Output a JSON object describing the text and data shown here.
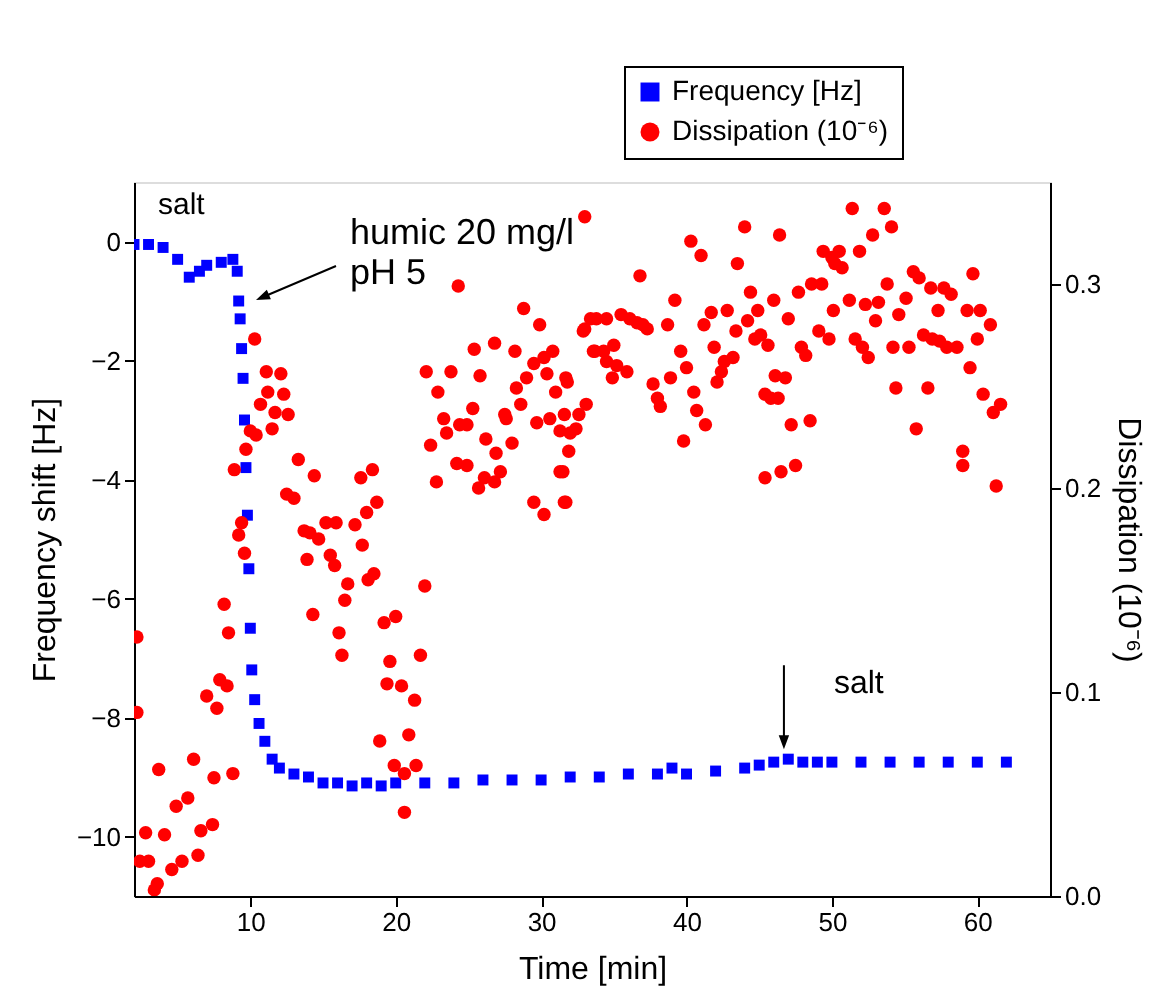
{
  "chart_data": {
    "type": "scatter",
    "xlabel": "Time [min]",
    "ylabel": "Frequency shift [Hz]",
    "y2label": "Dissipation (10⁻⁶)",
    "xlim": [
      2,
      65
    ],
    "xticks": [
      10,
      20,
      30,
      40,
      50,
      60
    ],
    "ylim": [
      -11,
      1
    ],
    "yticks": [
      0,
      -2,
      -4,
      -6,
      -8,
      -10
    ],
    "y2lim": [
      0,
      0.35
    ],
    "y2ticks": [
      {
        "value": 0,
        "label": "0.0"
      },
      0.1,
      0.2,
      0.3
    ],
    "legend": "top right",
    "grid": false,
    "annotations": [
      "salt",
      "humic 20 mg/l\npH 5",
      {
        "text": "salt",
        "x": 46.7,
        "y": -8.6
      }
    ],
    "series": [
      {
        "name": "Frequency [Hz]",
        "color": "#0000ff",
        "marker": "square",
        "axis": "y",
        "x": [
          2.0,
          3,
          4,
          5,
          5.8,
          6.5,
          7,
          8,
          8.8,
          9.1,
          9.2,
          9.3,
          9.4,
          9.5,
          9.6,
          9.7,
          9.8,
          9.9,
          10.0,
          10.1,
          10.3,
          10.6,
          11,
          11.5,
          12,
          13,
          14,
          15,
          16,
          17,
          18,
          19,
          20,
          22,
          24,
          26,
          28,
          30,
          32,
          34,
          36,
          38,
          39,
          40,
          42,
          44,
          45,
          46,
          47,
          48,
          49,
          50,
          52,
          54,
          56,
          58,
          60,
          62
        ],
        "values": [
          -0.05,
          -0.05,
          -0.1,
          -0.3,
          -0.6,
          -0.5,
          -0.4,
          -0.35,
          -0.3,
          -0.5,
          -1.0,
          -1.3,
          -1.8,
          -2.3,
          -3.0,
          -3.8,
          -4.6,
          -5.5,
          -6.5,
          -7.2,
          -7.7,
          -8.1,
          -8.4,
          -8.7,
          -8.85,
          -8.95,
          -9.0,
          -9.1,
          -9.1,
          -9.15,
          -9.1,
          -9.15,
          -9.1,
          -9.1,
          -9.1,
          -9.05,
          -9.05,
          -9.05,
          -9.0,
          -9.0,
          -8.95,
          -8.95,
          -8.85,
          -8.95,
          -8.9,
          -8.85,
          -8.8,
          -8.75,
          -8.7,
          -8.75,
          -8.75,
          -8.75,
          -8.75,
          -8.75,
          -8.75,
          -8.75,
          -8.75,
          -8.75
        ]
      },
      {
        "name": "Dissipation (10⁻⁶)",
        "color": "#ff0000",
        "marker": "circle",
        "axis": "y2",
        "x": [
          2.2,
          2.2,
          3.7,
          6.1,
          7.5,
          8.8,
          7.0,
          7.7,
          7.9,
          8.4,
          8.2,
          8.5,
          2.8,
          2.4,
          3.0,
          4.1,
          4.9,
          5.7,
          6.6,
          7.4,
          6.4,
          5.3,
          4.6,
          3.6,
          3.4,
          16.3,
          19.6,
          19.4,
          20.4,
          21.3,
          21.7,
          18.9,
          20.9,
          19.9,
          20.6,
          21.4,
          20.6,
          24.3,
          10.3,
          11.1,
          12.1,
          11.2,
          12.3,
          10.7,
          11.7,
          12.6,
          11.5,
          10.0,
          10.4,
          9.7,
          13.3,
          14.4,
          12.5,
          13.0,
          8.9,
          9.4,
          9.2,
          9.6,
          13.7,
          14.1,
          15.2,
          15.9,
          14.7,
          13.9,
          15.5,
          15.8,
          17.2,
          17.7,
          17.6,
          18.4,
          18.7,
          18.0,
          16.7,
          16.5,
          18.1,
          18.5,
          14.3,
          16.1,
          19.2,
          20.0,
          22.0,
          22.1,
          23.8,
          22.9,
          22.4,
          22.8,
          23.5,
          23.3,
          24.4,
          24.9,
          24.2,
          24.9,
          25.3,
          25.4,
          26.8,
          25.8,
          26.2,
          25.7,
          26.1,
          26.8,
          26.9,
          27.2,
          27.5,
          27.6,
          28.0,
          28.3,
          28.2,
          28.8,
          29.5,
          28.6,
          29.0,
          29.9,
          30.2,
          30.4,
          29.7,
          30.8,
          31.0,
          30.6,
          31.6,
          29.5,
          30.2,
          31.3,
          31.7,
          32.0,
          31.7,
          33.0,
          33.4,
          33.7,
          33.0,
          32.9,
          33.8,
          34.5,
          35.5,
          36.1,
          36.6,
          37.0,
          37.3,
          33.6,
          34.3,
          35.0,
          34.5,
          35.2,
          35.9,
          34.9,
          31.8,
          31.3,
          32.4,
          31.9,
          31.5,
          31.6,
          33.1,
          32.6,
          36.8,
          37.7,
          38.0,
          38.2,
          38.9,
          38.7,
          39.2,
          39.6,
          40.0,
          39.8,
          40.3,
          41.0,
          40.5,
          40.7,
          41.3,
          41.2,
          41.7,
          41.9,
          42.4,
          42.1,
          42.6,
          42.8,
          43.2,
          43.5,
          44.0,
          43.4,
          44.2,
          44.4,
          44.7,
          44.9,
          45.1,
          45.4,
          45.8,
          45.6,
          46.0,
          46.3,
          46.4,
          46.1,
          46.8,
          47.0,
          47.2,
          47.5,
          46.5,
          45.4,
          47.7,
          47.9,
          48.2,
          48.5,
          48.6,
          49.1,
          49.3,
          49.8,
          49.4,
          50.0,
          50.2,
          50.5,
          50.7,
          50.1,
          51.2,
          51.4,
          51.6,
          51.9,
          52.1,
          52.5,
          52.3,
          52.8,
          53.2,
          53.6,
          54.1,
          53.8,
          53.0,
          54.2,
          54.4,
          54.6,
          55.1,
          55.3,
          55.6,
          55.8,
          56.0,
          56.3,
          56.6,
          56.8,
          56.9,
          57.3,
          57.4,
          57.7,
          57.9,
          58.2,
          58.6,
          59.0,
          59.0,
          59.3,
          59.5,
          59.7,
          60.0,
          60.2,
          60.4,
          60.9,
          61.1,
          61.3,
          61.6
        ],
        "values": [
          0.127,
          0.09,
          0.062,
          0.067,
          0.058,
          0.06,
          0.098,
          0.092,
          0.106,
          0.103,
          0.143,
          0.129,
          0.031,
          0.017,
          0.017,
          0.03,
          0.044,
          0.048,
          0.032,
          0.035,
          0.02,
          0.017,
          0.013,
          0.006,
          0.003,
          0.118,
          0.115,
          0.104,
          0.103,
          0.096,
          0.118,
          0.076,
          0.079,
          0.064,
          0.06,
          0.064,
          0.041,
          0.299,
          0.273,
          0.257,
          0.256,
          0.247,
          0.246,
          0.241,
          0.237,
          0.236,
          0.229,
          0.228,
          0.226,
          0.219,
          0.214,
          0.206,
          0.197,
          0.195,
          0.209,
          0.183,
          0.177,
          0.168,
          0.179,
          0.178,
          0.183,
          0.183,
          0.175,
          0.165,
          0.167,
          0.162,
          0.182,
          0.172,
          0.205,
          0.209,
          0.193,
          0.188,
          0.153,
          0.145,
          0.155,
          0.158,
          0.138,
          0.129,
          0.134,
          0.137,
          0.152,
          0.257,
          0.257,
          0.247,
          0.221,
          0.203,
          0.227,
          0.234,
          0.231,
          0.231,
          0.212,
          0.211,
          0.239,
          0.268,
          0.271,
          0.255,
          0.224,
          0.2,
          0.205,
          0.203,
          0.217,
          0.208,
          0.236,
          0.234,
          0.222,
          0.249,
          0.267,
          0.288,
          0.261,
          0.241,
          0.254,
          0.28,
          0.264,
          0.256,
          0.232,
          0.267,
          0.247,
          0.234,
          0.236,
          0.193,
          0.187,
          0.208,
          0.254,
          0.227,
          0.193,
          0.278,
          0.283,
          0.267,
          0.333,
          0.277,
          0.283,
          0.283,
          0.285,
          0.283,
          0.281,
          0.28,
          0.278,
          0.267,
          0.267,
          0.27,
          0.262,
          0.26,
          0.257,
          0.254,
          0.252,
          0.228,
          0.229,
          0.218,
          0.208,
          0.193,
          0.241,
          0.236,
          0.304,
          0.251,
          0.244,
          0.24,
          0.254,
          0.28,
          0.292,
          0.267,
          0.259,
          0.223,
          0.321,
          0.314,
          0.247,
          0.238,
          0.231,
          0.28,
          0.286,
          0.269,
          0.257,
          0.252,
          0.262,
          0.287,
          0.264,
          0.31,
          0.328,
          0.277,
          0.282,
          0.296,
          0.273,
          0.287,
          0.275,
          0.246,
          0.244,
          0.27,
          0.292,
          0.244,
          0.324,
          0.255,
          0.254,
          0.283,
          0.231,
          0.211,
          0.208,
          0.205,
          0.296,
          0.269,
          0.265,
          0.233,
          0.3,
          0.277,
          0.3,
          0.273,
          0.316,
          0.313,
          0.31,
          0.316,
          0.308,
          0.287,
          0.292,
          0.337,
          0.273,
          0.316,
          0.269,
          0.264,
          0.29,
          0.324,
          0.291,
          0.337,
          0.328,
          0.3,
          0.282,
          0.269,
          0.249,
          0.285,
          0.293,
          0.269,
          0.306,
          0.229,
          0.303,
          0.275,
          0.249,
          0.298,
          0.273,
          0.287,
          0.272,
          0.298,
          0.269,
          0.295,
          0.269,
          0.211,
          0.218,
          0.287,
          0.259,
          0.305,
          0.273,
          0.287,
          0.246,
          0.28,
          0.237,
          0.201,
          0.241
        ]
      }
    ]
  }
}
